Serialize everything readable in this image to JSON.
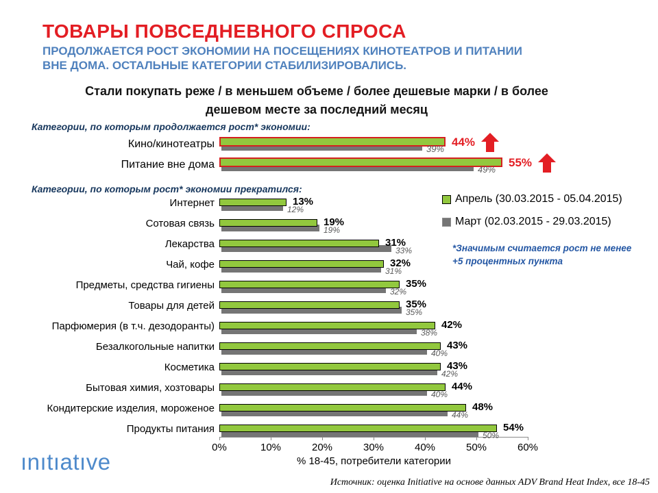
{
  "slide": {
    "title": "ТОВАРЫ ПОВСЕДНЕВНОГО СПРОСА",
    "subtitle": "ПРОДОЛЖАЕТСЯ РОСТ ЭКОНОМИИ НА ПОСЕЩЕНИЯХ КИНОТЕАТРОВ И ПИТАНИИ ВНЕ ДОМА. ОСТАЛЬНЫЕ КАТЕГОРИИ СТАБИЛИЗИРОВАЛИСЬ.",
    "question": "Стали покупать реже / в меньшем объеме / более дешевые марки / в более дешевом месте за последний месяц"
  },
  "chart_data": {
    "type": "bar",
    "orientation": "horizontal",
    "xlabel": "% 18-45, потребители категории",
    "xlim": [
      0,
      60
    ],
    "x_ticks": [
      "0%",
      "10%",
      "20%",
      "30%",
      "40%",
      "50%",
      "60%"
    ],
    "grid": false,
    "legend_position": "right",
    "legend": [
      {
        "name": "Апрель (30.03.2015 - 05.04.2015)",
        "color": "#92C83E"
      },
      {
        "name": "Март (02.03.2015 - 29.03.2015)",
        "color": "#757575"
      }
    ],
    "groups": [
      {
        "label": "Категории, по которым продолжается рост* экономии:",
        "highlight": true,
        "rows": [
          {
            "category": "Кино/кинотеатры",
            "april": 44,
            "march": 39
          },
          {
            "category": "Питание вне дома",
            "april": 55,
            "march": 49
          }
        ]
      },
      {
        "label": "Категории, по которым рост* экономии прекратился:",
        "highlight": false,
        "rows": [
          {
            "category": "Интернет",
            "april": 13,
            "march": 12
          },
          {
            "category": "Сотовая связь",
            "april": 19,
            "march": 19
          },
          {
            "category": "Лекарства",
            "april": 31,
            "march": 33
          },
          {
            "category": "Чай, кофе",
            "april": 32,
            "march": 31
          },
          {
            "category": "Предметы, средства гигиены",
            "april": 35,
            "march": 32
          },
          {
            "category": "Товары для детей",
            "april": 35,
            "march": 35
          },
          {
            "category": "Парфюмерия (в т.ч. дезодоранты)",
            "april": 42,
            "march": 38
          },
          {
            "category": "Безалкогольные напитки",
            "april": 43,
            "march": 40
          },
          {
            "category": "Косметика",
            "april": 43,
            "march": 42
          },
          {
            "category": "Бытовая химия, хозтовары",
            "april": 44,
            "march": 40
          },
          {
            "category": "Кондитерские изделия, мороженое",
            "april": 48,
            "march": 44
          },
          {
            "category": "Продукты питания",
            "april": 54,
            "march": 50
          }
        ]
      }
    ],
    "colors": {
      "april_green": "#92C83E",
      "march_gray": "#757575",
      "accent_red": "#E31E24",
      "subtitle_blue": "#4F81BD",
      "section_navy": "#17375D",
      "footnote_blue": "#2457A4",
      "logo_blue": "#4E8ACB"
    }
  },
  "footnote": "*Значимым считается рост не менее +5 процентных пункта",
  "footer": {
    "logo": "ınıtıatıve",
    "source": "Источник: оценка Initiative на основе данных ADV Brand Heat Index, все 18-45"
  }
}
